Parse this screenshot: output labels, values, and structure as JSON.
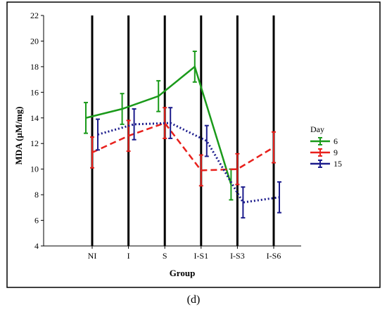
{
  "caption": "(d)",
  "chart_data": {
    "type": "line",
    "title": "",
    "xlabel": "Group",
    "ylabel": "MDA (µM/mg)",
    "categories": [
      "NI",
      "I",
      "S",
      "I-S1",
      "I-S3",
      "I-S6"
    ],
    "ylim": [
      4,
      22
    ],
    "yticks": [
      4,
      6,
      8,
      10,
      12,
      14,
      16,
      18,
      20,
      22
    ],
    "legend_title": "Day",
    "legend_position": "right",
    "vertical_lines_at_categories": true,
    "series": [
      {
        "name": "6",
        "color": "#1a9a1a",
        "style": "solid",
        "values": [
          14.0,
          14.7,
          15.7,
          18.0,
          8.8,
          null
        ],
        "err": [
          1.2,
          1.2,
          1.2,
          1.2,
          1.2,
          null
        ]
      },
      {
        "name": "9",
        "color": "#e8201c",
        "style": "dashed",
        "values": [
          11.3,
          12.6,
          13.6,
          9.9,
          10.0,
          11.7
        ],
        "err": [
          1.2,
          1.2,
          1.2,
          1.2,
          1.2,
          1.2
        ]
      },
      {
        "name": "15",
        "color": "#1c1c8c",
        "style": "dotted",
        "values": [
          12.7,
          13.5,
          13.6,
          12.2,
          7.4,
          7.8
        ],
        "err": [
          1.2,
          1.2,
          1.2,
          1.2,
          1.2,
          1.2
        ]
      }
    ]
  }
}
